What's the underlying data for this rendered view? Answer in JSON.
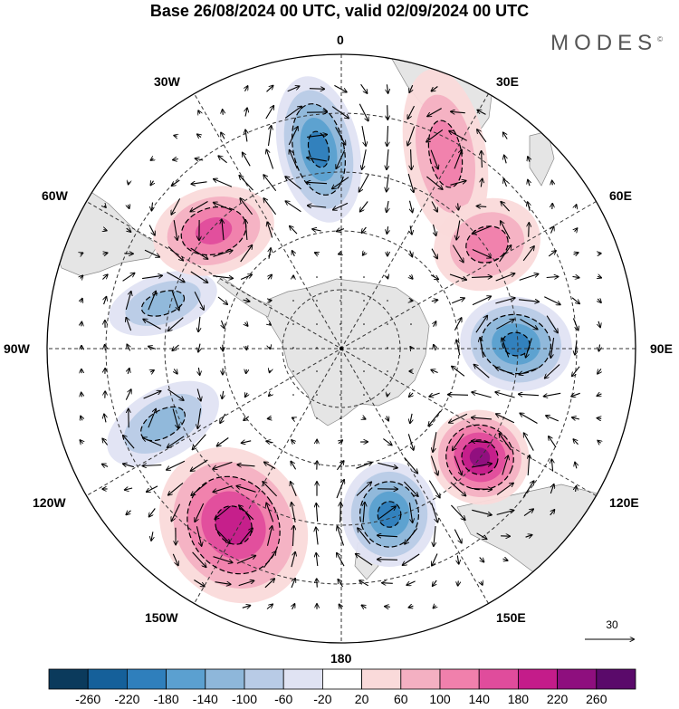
{
  "title": "Base 26/08/2024 00 UTC, valid 02/09/2024 00 UTC",
  "brand": "MODES",
  "brand_mark": "©",
  "longitude_labels": {
    "top": "0",
    "top_right": "30E",
    "right_upper": "60E",
    "right": "90E",
    "right_lower": "120E",
    "bottom_right": "150E",
    "bottom": "180",
    "bottom_left": "150W",
    "left_lower": "120W",
    "left": "90W",
    "left_upper": "60W",
    "top_left": "30W"
  },
  "reference_vector": {
    "label": "30"
  },
  "colorbar": {
    "labels": [
      "-260",
      "-220",
      "-180",
      "-140",
      "-100",
      "-60",
      "-20",
      "20",
      "60",
      "100",
      "140",
      "180",
      "220",
      "260"
    ],
    "colors": [
      "#0b3a5c",
      "#15609a",
      "#2f7fbc",
      "#5ba0d0",
      "#8eb7da",
      "#b8cbe6",
      "#e0e3f3",
      "#ffffff",
      "#fadada",
      "#f4b0c2",
      "#f080ac",
      "#e04c9c",
      "#c41c8a",
      "#8e0f7e",
      "#5a0a6a"
    ]
  },
  "anomaly_centers": [
    {
      "kind": "negative",
      "intensity": 4
    },
    {
      "kind": "negative",
      "intensity": 4
    },
    {
      "kind": "negative",
      "intensity": 4
    },
    {
      "kind": "negative",
      "intensity": 2
    },
    {
      "kind": "negative",
      "intensity": 2
    },
    {
      "kind": "positive",
      "intensity": 5
    },
    {
      "kind": "positive",
      "intensity": 4
    },
    {
      "kind": "positive",
      "intensity": 3
    },
    {
      "kind": "positive",
      "intensity": 2
    },
    {
      "kind": "positive",
      "intensity": 2
    }
  ]
}
